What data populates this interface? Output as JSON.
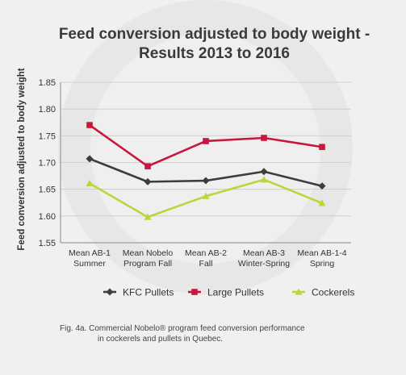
{
  "chart_data": {
    "type": "line",
    "title": [
      "Feed conversion adjusted to body weight -",
      "Results 2013 to 2016"
    ],
    "ylabel": "Feed conversion adjusted to body weight",
    "xlabel": "",
    "categories": [
      [
        "Mean AB-1",
        "Summer"
      ],
      [
        "Mean Nobelo",
        "Program Fall"
      ],
      [
        "Mean AB-2",
        "Fall"
      ],
      [
        "Mean AB-3",
        "Winter-Spring"
      ],
      [
        "Mean AB-1-4",
        "Spring"
      ]
    ],
    "ylim": [
      1.55,
      1.85
    ],
    "yticks": [
      "1.55",
      "1.60",
      "1.65",
      "1.70",
      "1.75",
      "1.80",
      "1.85"
    ],
    "grid": "horizontal",
    "legend_position": "bottom",
    "series": [
      {
        "name": "KFC Pullets",
        "values": [
          1.707,
          1.664,
          1.666,
          1.683,
          1.656
        ],
        "color": "#3d3d3d",
        "marker": "diamond"
      },
      {
        "name": "Large Pullets",
        "values": [
          1.77,
          1.693,
          1.74,
          1.746,
          1.729
        ],
        "color": "#c8163c",
        "marker": "square"
      },
      {
        "name": "Cockerels",
        "values": [
          1.661,
          1.598,
          1.637,
          1.668,
          1.624
        ],
        "color": "#bcd53a",
        "marker": "triangle"
      }
    ]
  },
  "caption": {
    "line1": "Fig. 4a.   Commercial Nobelo® program feed conversion performance",
    "line2": "in cockerels and pullets in Quebec."
  }
}
